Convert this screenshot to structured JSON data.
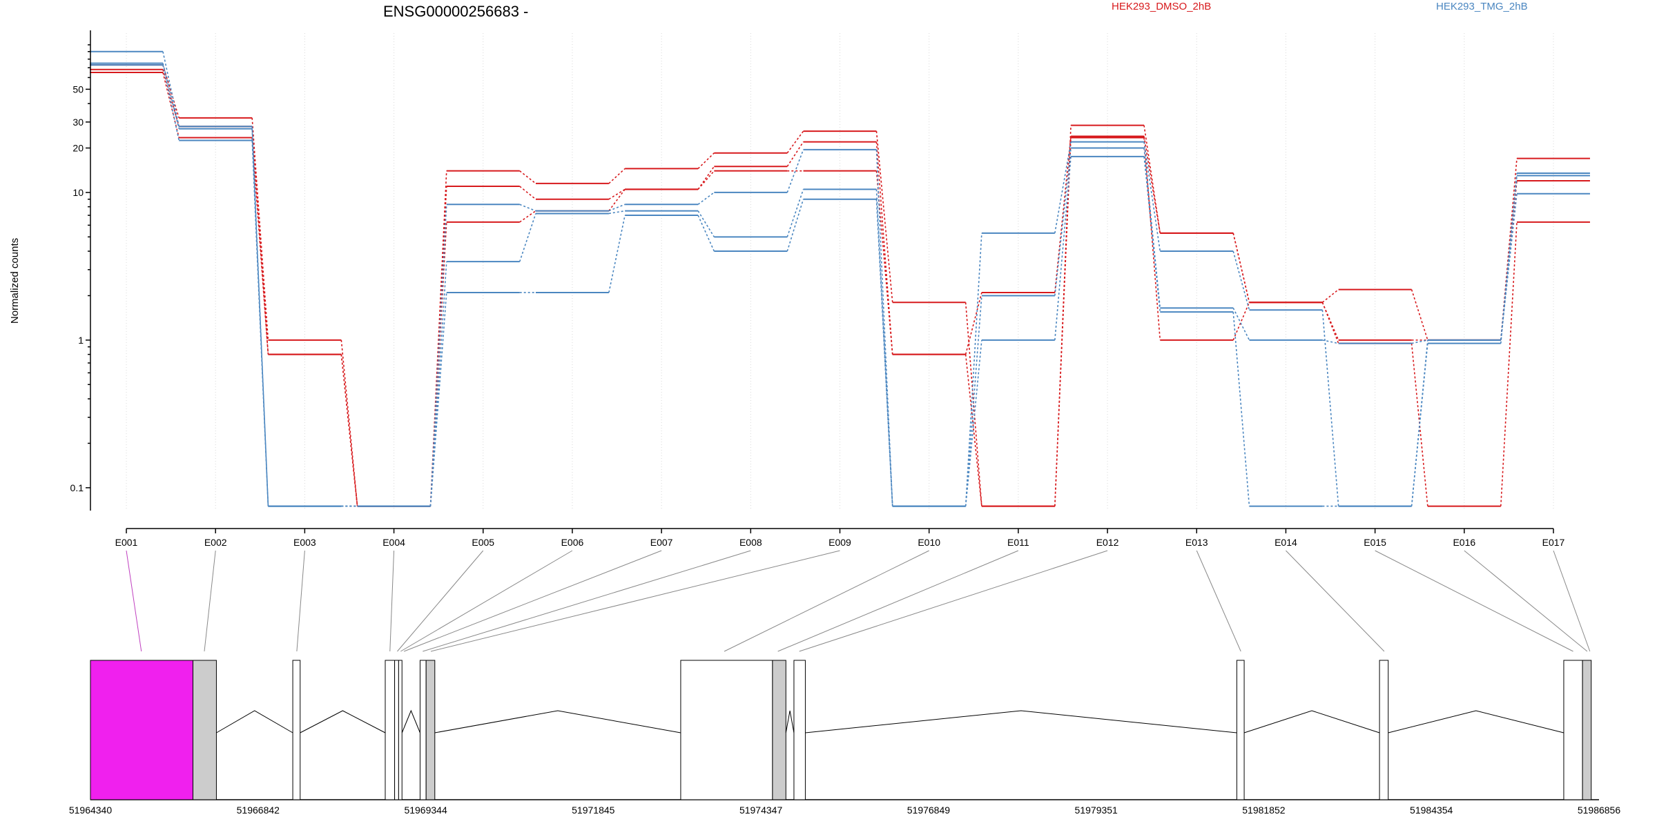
{
  "chart_data": {
    "type": "line",
    "title": "ENSG00000256683 -",
    "ylabel": "Normalized counts",
    "xlabel": "",
    "yscale": "log",
    "ylim": [
      0.07,
      120
    ],
    "yticks": [
      0.1,
      1,
      10,
      20,
      30,
      50
    ],
    "grid": "vertical dotted",
    "legend_placement": "top-right",
    "categories": [
      "E001",
      "E002",
      "E003",
      "E004",
      "E005",
      "E006",
      "E007",
      "E008",
      "E009",
      "E010",
      "E011",
      "E012",
      "E013",
      "E014",
      "E015",
      "E016",
      "E017"
    ],
    "series": [
      {
        "name": "HEK293_DMSO_2hB",
        "color": "#d7191c",
        "values": [
          73,
          32,
          1.0,
          0.075,
          14,
          11.5,
          14.5,
          18.5,
          26,
          1.8,
          0.075,
          28.5,
          5.3,
          1.8,
          2.2,
          1.0,
          17
        ]
      },
      {
        "name": "HEK293_DMSO_2hB",
        "color": "#d7191c",
        "values": [
          68,
          28,
          0.8,
          0.075,
          11,
          9,
          10.5,
          15,
          22,
          0.8,
          2.1,
          24,
          5.3,
          1.8,
          1.0,
          1.0,
          12
        ]
      },
      {
        "name": "HEK293_DMSO_2hB",
        "color": "#d7191c",
        "values": [
          65,
          23.5,
          0.8,
          0.075,
          6.3,
          7.5,
          10.5,
          14,
          14,
          0.8,
          0.075,
          23.5,
          1.0,
          1.8,
          0.95,
          0.075,
          6.3
        ]
      },
      {
        "name": "HEK293_TMG_2hB",
        "color": "#4a86c0",
        "values": [
          90,
          28,
          0.075,
          0.075,
          8.3,
          7.5,
          8.3,
          10,
          19.5,
          0.075,
          5.3,
          22,
          4.0,
          1.6,
          0.075,
          0.95,
          13.5
        ]
      },
      {
        "name": "HEK293_TMG_2hB",
        "color": "#4a86c0",
        "values": [
          75,
          27,
          0.075,
          0.075,
          3.4,
          7.2,
          7.5,
          5.0,
          10.5,
          0.075,
          2.0,
          20,
          1.65,
          1.0,
          0.95,
          1.0,
          13
        ]
      },
      {
        "name": "HEK293_TMG_2hB",
        "color": "#4a86c0",
        "values": [
          73,
          22.5,
          0.075,
          0.075,
          2.1,
          2.1,
          7.0,
          4.0,
          9.0,
          0.075,
          1.0,
          17.5,
          1.55,
          0.075,
          0.075,
          1.0,
          9.8
        ]
      }
    ],
    "legend": [
      {
        "label": "HEK293_DMSO_2hB",
        "color": "#d7191c"
      },
      {
        "label": "HEK293_TMG_2hB",
        "color": "#4a86c0"
      }
    ],
    "gene_model": {
      "coord_ticks": [
        51964340,
        51966842,
        51969344,
        51971845,
        51974347,
        51976849,
        51979351,
        51981852,
        51984354,
        51986856
      ],
      "coord_range": [
        51964340,
        51986856
      ],
      "highlight_color": "#f020ee",
      "shaded_color": "#cccccc",
      "exons": [
        {
          "start": 51964340,
          "end": 51965870,
          "style": "highlight"
        },
        {
          "start": 51965870,
          "end": 51966220,
          "style": "shaded"
        },
        {
          "start": 51967360,
          "end": 51967470,
          "style": "plain"
        },
        {
          "start": 51968740,
          "end": 51968880,
          "style": "plain"
        },
        {
          "start": 51968880,
          "end": 51968940,
          "style": "plain"
        },
        {
          "start": 51968940,
          "end": 51968990,
          "style": "plain"
        },
        {
          "start": 51969260,
          "end": 51969350,
          "style": "plain"
        },
        {
          "start": 51969350,
          "end": 51969480,
          "style": "shaded"
        },
        {
          "start": 51973150,
          "end": 51974520,
          "style": "plain"
        },
        {
          "start": 51974520,
          "end": 51974720,
          "style": "shaded"
        },
        {
          "start": 51974840,
          "end": 51975010,
          "style": "plain"
        },
        {
          "start": 51981450,
          "end": 51981560,
          "style": "plain"
        },
        {
          "start": 51983580,
          "end": 51983710,
          "style": "plain"
        },
        {
          "start": 51986330,
          "end": 51986610,
          "style": "plain"
        },
        {
          "start": 51986610,
          "end": 51986740,
          "style": "shaded"
        }
      ],
      "exon_links": [
        51965100,
        51966040,
        51967420,
        51968810,
        51968920,
        51968970,
        51969020,
        51969300,
        51969420,
        51973800,
        51974600,
        51974920,
        51981510,
        51983650,
        51986470,
        51986680,
        51986720
      ]
    }
  }
}
